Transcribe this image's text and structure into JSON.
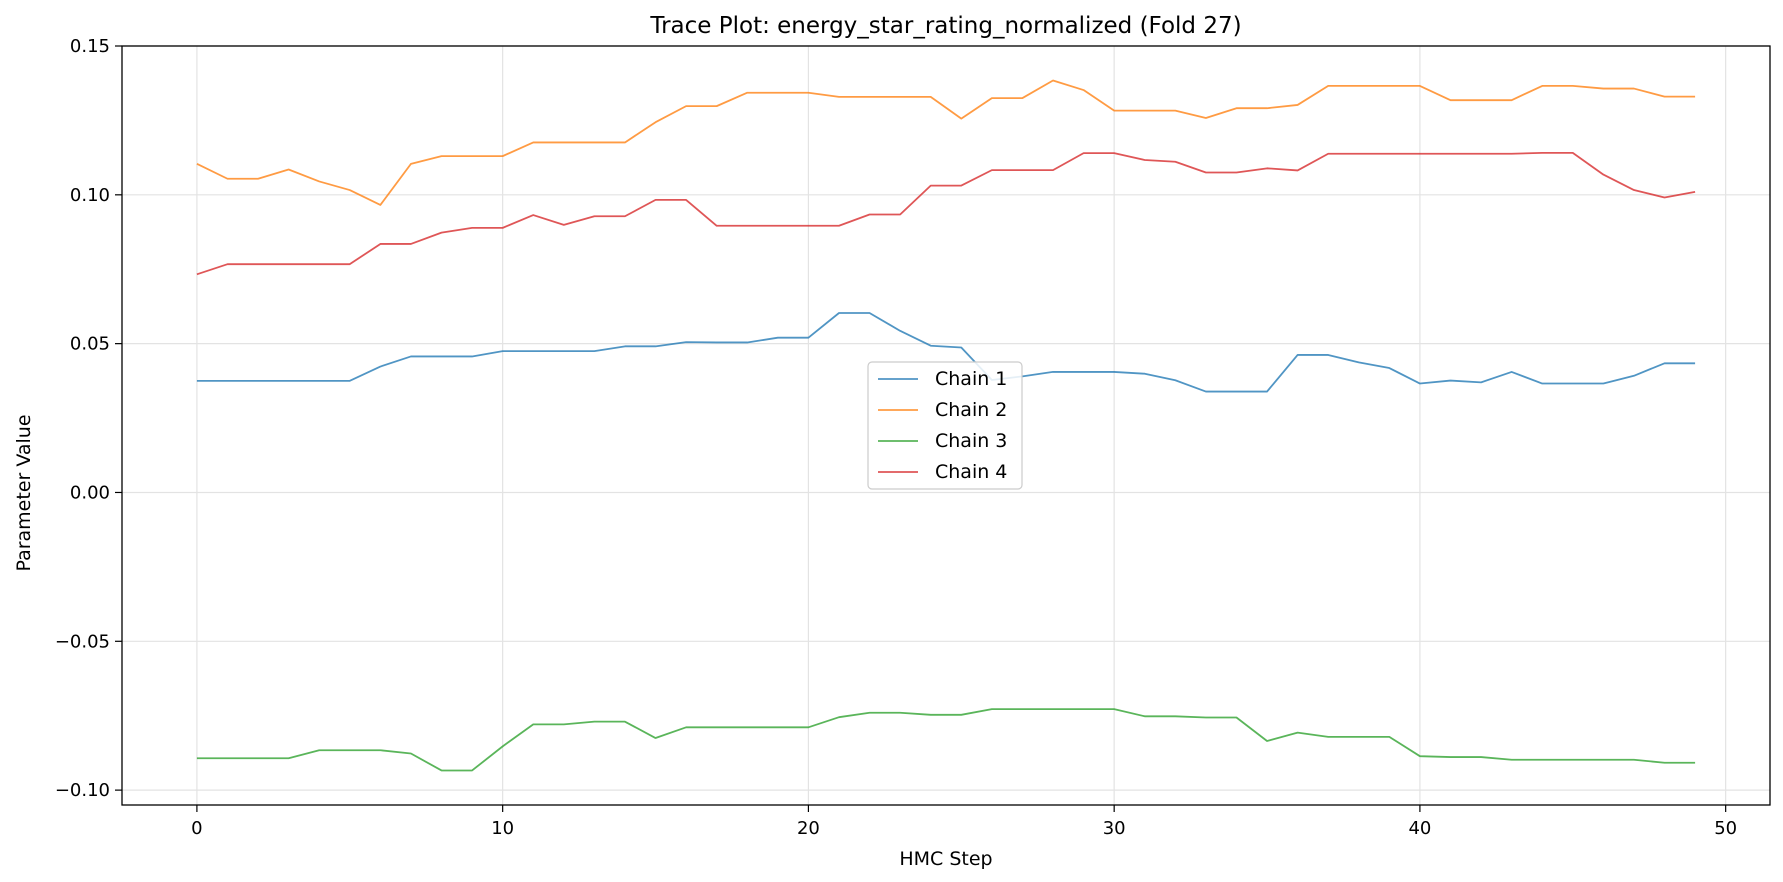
{
  "chart_data": {
    "type": "line",
    "title": "Trace Plot: energy_star_rating_normalized (Fold 27)",
    "xlabel": "HMC Step",
    "ylabel": "Parameter Value",
    "xlim": [
      -2.45,
      51.45
    ],
    "ylim": [
      -0.105,
      0.15
    ],
    "xticks": [
      0,
      10,
      20,
      30,
      40,
      50
    ],
    "yticks": [
      -0.1,
      -0.05,
      0.0,
      0.05,
      0.1,
      0.15
    ],
    "ytick_labels": [
      "−0.10",
      "−0.05",
      "0.00",
      "0.05",
      "0.10",
      "0.15"
    ],
    "grid": true,
    "legend_position": "center",
    "x": [
      0,
      1,
      2,
      3,
      4,
      5,
      6,
      7,
      8,
      9,
      10,
      11,
      12,
      13,
      14,
      15,
      16,
      17,
      18,
      19,
      20,
      21,
      22,
      23,
      24,
      25,
      26,
      27,
      28,
      29,
      30,
      31,
      32,
      33,
      34,
      35,
      36,
      37,
      38,
      39,
      40,
      41,
      42,
      43,
      44,
      45,
      46,
      47,
      48,
      49
    ],
    "series": [
      {
        "name": "Chain 1",
        "color": "#1f77b4",
        "values": [
          0.0375,
          0.0375,
          0.0375,
          0.0375,
          0.0375,
          0.0375,
          0.0423,
          0.0457,
          0.0457,
          0.0457,
          0.0475,
          0.0475,
          0.0475,
          0.0475,
          0.0491,
          0.0491,
          0.0505,
          0.0504,
          0.0504,
          0.052,
          0.052,
          0.0603,
          0.0603,
          0.0543,
          0.0493,
          0.0487,
          0.0378,
          0.039,
          0.0405,
          0.0405,
          0.0405,
          0.0399,
          0.0377,
          0.0339,
          0.0339,
          0.0339,
          0.0462,
          0.0462,
          0.0437,
          0.0418,
          0.0366,
          0.0376,
          0.037,
          0.0405,
          0.0366,
          0.0366,
          0.0366,
          0.0392,
          0.0434,
          0.0434
        ]
      },
      {
        "name": "Chain 2",
        "color": "#ff7f0e",
        "values": [
          0.1104,
          0.1054,
          0.1054,
          0.1085,
          0.1045,
          0.1016,
          0.0966,
          0.1104,
          0.113,
          0.113,
          0.113,
          0.1176,
          0.1176,
          0.1176,
          0.1176,
          0.1244,
          0.1298,
          0.1298,
          0.1343,
          0.1343,
          0.1343,
          0.1329,
          0.1329,
          0.1329,
          0.1329,
          0.1256,
          0.1325,
          0.1325,
          0.1384,
          0.1352,
          0.1283,
          0.1283,
          0.1283,
          0.1258,
          0.1291,
          0.1291,
          0.1302,
          0.1366,
          0.1366,
          0.1366,
          0.1366,
          0.1318,
          0.1318,
          0.1318,
          0.1366,
          0.1366,
          0.1357,
          0.1357,
          0.133,
          0.133
        ]
      },
      {
        "name": "Chain 3",
        "color": "#2ca02c",
        "values": [
          -0.0893,
          -0.0893,
          -0.0893,
          -0.0893,
          -0.0866,
          -0.0866,
          -0.0866,
          -0.0877,
          -0.0934,
          -0.0934,
          -0.0853,
          -0.0779,
          -0.0779,
          -0.077,
          -0.077,
          -0.0825,
          -0.0789,
          -0.0789,
          -0.0789,
          -0.0789,
          -0.0789,
          -0.0755,
          -0.074,
          -0.074,
          -0.0747,
          -0.0747,
          -0.0728,
          -0.0728,
          -0.0728,
          -0.0728,
          -0.0728,
          -0.0752,
          -0.0752,
          -0.0756,
          -0.0756,
          -0.0835,
          -0.0807,
          -0.0821,
          -0.0821,
          -0.0821,
          -0.0886,
          -0.0889,
          -0.0889,
          -0.0898,
          -0.0898,
          -0.0898,
          -0.0898,
          -0.0898,
          -0.0908,
          -0.0908
        ]
      },
      {
        "name": "Chain 4",
        "color": "#d62728",
        "values": [
          0.0733,
          0.0767,
          0.0767,
          0.0767,
          0.0767,
          0.0767,
          0.0835,
          0.0835,
          0.0873,
          0.0889,
          0.0889,
          0.0932,
          0.0899,
          0.0928,
          0.0928,
          0.0983,
          0.0983,
          0.0896,
          0.0896,
          0.0896,
          0.0896,
          0.0896,
          0.0934,
          0.0934,
          0.1031,
          0.1031,
          0.1083,
          0.1083,
          0.1083,
          0.114,
          0.114,
          0.1117,
          0.1111,
          0.1075,
          0.1075,
          0.1089,
          0.1082,
          0.1138,
          0.1138,
          0.1138,
          0.1138,
          0.1138,
          0.1138,
          0.1138,
          0.1141,
          0.1141,
          0.1068,
          0.1016,
          0.0991,
          0.101
        ]
      }
    ]
  }
}
